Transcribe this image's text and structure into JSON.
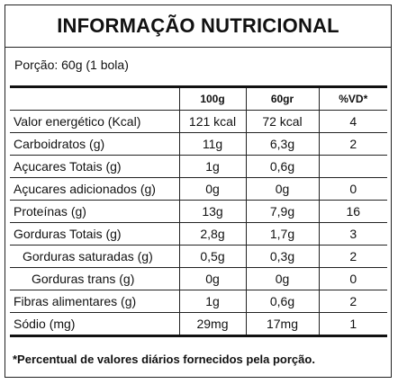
{
  "header": {
    "title": "INFORMAÇÃO NUTRICIONAL",
    "serving": "Porção: 60g (1 bola)"
  },
  "table": {
    "columns": [
      "100g",
      "60gr",
      "%VD*"
    ],
    "rows": [
      [
        "Valor energético (Kcal)",
        "121 kcal",
        "72 kcal",
        "4"
      ],
      [
        "Carboidratos (g)",
        "11g",
        "6,3g",
        "2"
      ],
      [
        "Açucares Totais (g)",
        "1g",
        "0,6g",
        null
      ],
      [
        "Açucares adicionados (g)",
        "0g",
        "0g",
        "0"
      ],
      [
        "Proteínas (g)",
        "13g",
        "7,9g",
        "16"
      ],
      [
        "Gorduras Totais (g)",
        "2,8g",
        "1,7g",
        "3"
      ],
      [
        "Gorduras saturadas (g)",
        "0,5g",
        "0,3g",
        "2"
      ],
      [
        "Gorduras trans (g)",
        "0g",
        "0g",
        "0"
      ],
      [
        "Fibras alimentares (g)",
        "1g",
        "0,6g",
        "2"
      ],
      [
        "Sódio (mg)",
        "29mg",
        "17mg",
        "1"
      ]
    ]
  },
  "footnote": "*Percentual de valores diários fornecidos pela porção."
}
